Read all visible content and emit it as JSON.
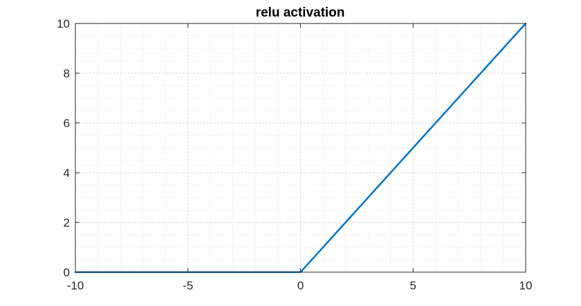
{
  "chart_data": {
    "type": "line",
    "title": "relu activation",
    "xlabel": "",
    "ylabel": "",
    "xlim": [
      -10,
      10
    ],
    "ylim": [
      0,
      10
    ],
    "x_ticks": [
      -10,
      -5,
      0,
      5,
      10
    ],
    "y_ticks": [
      0,
      2,
      4,
      6,
      8,
      10
    ],
    "x_tick_labels": [
      "-10",
      "-5",
      "0",
      "5",
      "10"
    ],
    "y_tick_labels": [
      "0",
      "2",
      "4",
      "6",
      "8",
      "10"
    ],
    "grid": true,
    "minor_grid": true,
    "series": [
      {
        "color": "#0072BD",
        "x": [
          -10,
          0,
          10
        ],
        "y": [
          0,
          0,
          10
        ]
      }
    ]
  }
}
